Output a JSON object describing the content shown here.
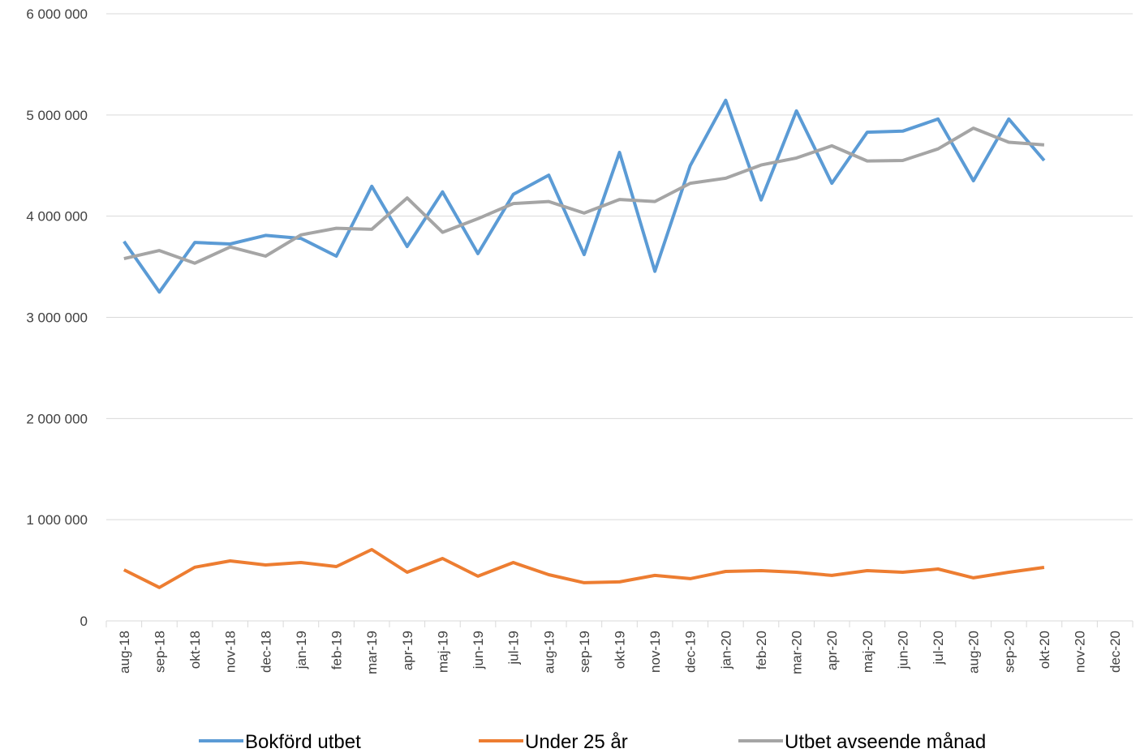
{
  "chart_data": {
    "type": "line",
    "categories": [
      "aug-18",
      "sep-18",
      "okt-18",
      "nov-18",
      "dec-18",
      "jan-19",
      "feb-19",
      "mar-19",
      "apr-19",
      "maj-19",
      "jun-19",
      "jul-19",
      "aug-19",
      "sep-19",
      "okt-19",
      "nov-19",
      "dec-19",
      "jan-20",
      "feb-20",
      "mar-20",
      "apr-20",
      "maj-20",
      "jun-20",
      "jul-20",
      "aug-20",
      "sep-20",
      "okt-20",
      "nov-20",
      "dec-20"
    ],
    "series": [
      {
        "name": "Bokförd utbet",
        "color": "#5b9bd5",
        "values": [
          3750000,
          3250000,
          3740000,
          3725000,
          3810000,
          3780000,
          3605000,
          4295000,
          3700000,
          4240000,
          3630000,
          4215000,
          4405000,
          3620000,
          4630000,
          3455000,
          4500000,
          5145000,
          4160000,
          5040000,
          4325000,
          4830000,
          4840000,
          4960000,
          4350000,
          4960000,
          4550000,
          null,
          null
        ]
      },
      {
        "name": "Under 25 år",
        "color": "#ed7d31",
        "values": [
          505000,
          330000,
          530000,
          593000,
          553000,
          577000,
          537000,
          705000,
          481000,
          617000,
          441000,
          577000,
          457000,
          377000,
          385000,
          449000,
          417000,
          489000,
          497000,
          481000,
          449000,
          497000,
          481000,
          513000,
          425000,
          481000,
          529000,
          null,
          null
        ]
      },
      {
        "name": "Utbet avseende månad",
        "color": "#a5a5a5",
        "values": [
          3580000,
          3660000,
          3535000,
          3695000,
          3605000,
          3815000,
          3880000,
          3870000,
          4180000,
          3840000,
          3975000,
          4125000,
          4145000,
          4030000,
          4165000,
          4145000,
          4325000,
          4375000,
          4505000,
          4575000,
          4695000,
          4545000,
          4550000,
          4665000,
          4870000,
          4730000,
          4705000,
          null,
          null
        ]
      }
    ],
    "ylim": [
      0,
      6000000
    ],
    "yticks": [
      0,
      {
        "value": 1000000,
        "label": "1 000 000"
      },
      {
        "value": 2000000,
        "label": "2 000 000"
      },
      {
        "value": 3000000,
        "label": "3 000 000"
      },
      {
        "value": 4000000,
        "label": "4 000 000"
      },
      {
        "value": 5000000,
        "label": "5 000 000"
      },
      {
        "value": 6000000,
        "label": "6 000 000"
      }
    ],
    "grid": true,
    "legend": "bottom"
  }
}
